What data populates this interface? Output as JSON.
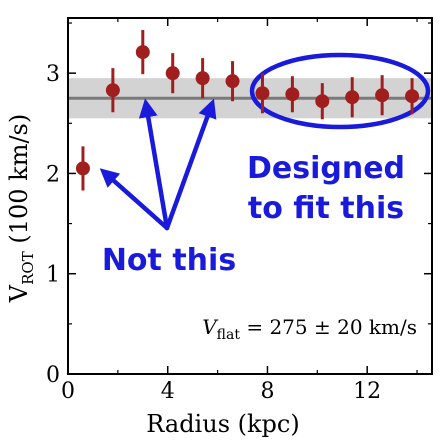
{
  "chart_data": {
    "type": "scatter",
    "x": [
      0.6,
      1.8,
      3.0,
      4.2,
      5.4,
      6.6,
      7.8,
      9.0,
      10.2,
      11.4,
      12.6,
      13.8
    ],
    "y": [
      2.05,
      2.83,
      3.21,
      3.0,
      2.95,
      2.92,
      2.8,
      2.79,
      2.72,
      2.76,
      2.78,
      2.77
    ],
    "yerr": [
      0.22,
      0.22,
      0.22,
      0.2,
      0.2,
      0.2,
      0.2,
      0.18,
      0.18,
      0.2,
      0.2,
      0.18
    ],
    "xlim": [
      0,
      14.6
    ],
    "ylim": [
      0,
      3.55
    ],
    "xticks": [
      0,
      4,
      8,
      12
    ],
    "yticks": [
      0,
      1,
      2,
      3
    ],
    "xlabel": "Radius (kpc)",
    "ylabel_main": "V",
    "ylabel_sub": "ROT",
    "ylabel_rest": " (100 km/s)",
    "flat_value": 2.75,
    "flat_band": [
      2.55,
      2.95
    ],
    "vflat_label": {
      "symbol": "V",
      "sub": "flat",
      "value_text": " = 275 ± 20 km/s"
    },
    "annotations": {
      "fit": [
        "Designed",
        "to fit this"
      ],
      "not": "Not this"
    },
    "colors": {
      "points": "#a01e1e",
      "flat_line": "#7a7a7a",
      "band": "#d3d3d3",
      "annotation": "#1a1adb",
      "axes": "#000000"
    }
  }
}
